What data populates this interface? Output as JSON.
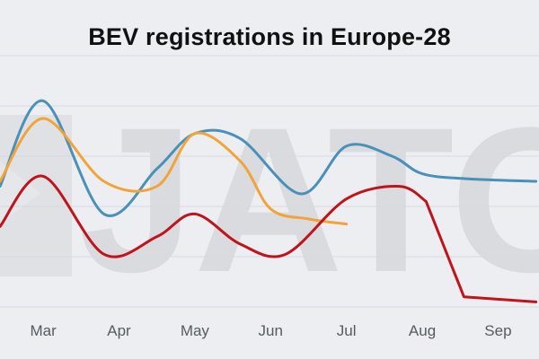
{
  "chart_data": {
    "type": "line",
    "title": "BEV registrations in Europe-28",
    "xlabel": "",
    "ylabel": "",
    "categories": [
      "Mar",
      "Apr",
      "May",
      "Jun",
      "Jul",
      "Aug",
      "Sep"
    ],
    "x_range": [
      1.43,
      8.54
    ],
    "ylim": [
      0,
      100
    ],
    "grid": true,
    "legend": "none",
    "watermark": "JATO",
    "series": [
      {
        "color": "#4a90b8",
        "x": [
          1.43,
          2,
          2.8,
          3.5,
          4,
          4.6,
          5.4,
          6,
          6.6,
          7,
          7.6,
          8.5
        ],
        "values": [
          48,
          82,
          37,
          55,
          69,
          67,
          45,
          64,
          60,
          53,
          51,
          50
        ]
      },
      {
        "color": "#f0a43a",
        "x": [
          1.43,
          2,
          2.8,
          3.5,
          4,
          4.6,
          5,
          5.5,
          6
        ],
        "values": [
          50,
          75,
          50,
          48,
          69,
          58,
          39,
          35,
          33
        ]
      },
      {
        "color": "#c0141c",
        "x": [
          1.43,
          2,
          2.8,
          3.5,
          4,
          4.6,
          5.2,
          6,
          6.7,
          7.05,
          7.55,
          8.5
        ],
        "values": [
          32,
          52,
          21,
          28,
          37,
          25,
          21,
          43,
          48,
          42,
          4,
          2
        ]
      }
    ]
  }
}
